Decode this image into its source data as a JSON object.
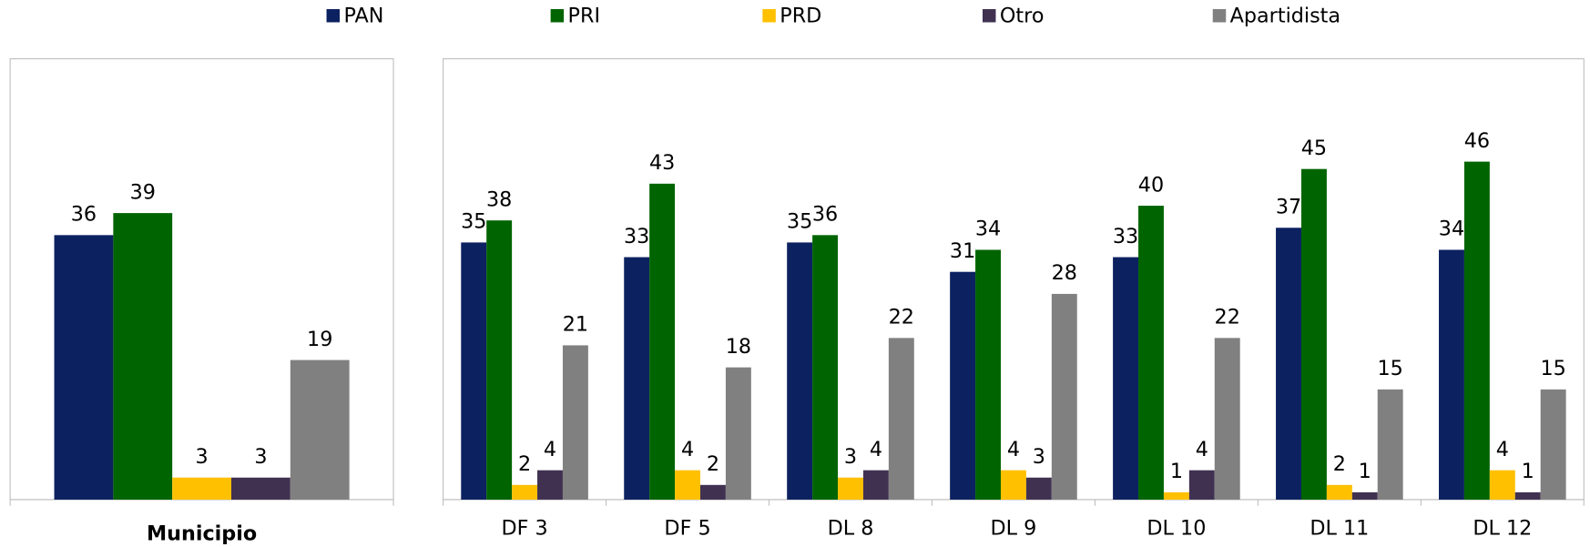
{
  "chart_data": [
    {
      "type": "bar",
      "categories": [
        "Municipio"
      ],
      "series": [
        {
          "name": "PAN",
          "color": "#0c2160",
          "values": [
            36
          ]
        },
        {
          "name": "PRI",
          "color": "#006400",
          "values": [
            39
          ]
        },
        {
          "name": "PRD",
          "color": "#ffc000",
          "values": [
            3
          ]
        },
        {
          "name": "Otro",
          "color": "#403151",
          "values": [
            3
          ]
        },
        {
          "name": "Apartidista",
          "color": "#808080",
          "values": [
            19
          ]
        }
      ],
      "ylim": [
        0,
        60
      ]
    },
    {
      "type": "bar",
      "categories": [
        "DF 3",
        "DF 5",
        "DL 8",
        "DL 9",
        "DL 10",
        "DL 11",
        "DL 12"
      ],
      "series": [
        {
          "name": "PAN",
          "color": "#0c2160",
          "values": [
            35,
            33,
            35,
            31,
            33,
            37,
            34
          ]
        },
        {
          "name": "PRI",
          "color": "#006400",
          "values": [
            38,
            43,
            36,
            34,
            40,
            45,
            46
          ]
        },
        {
          "name": "PRD",
          "color": "#ffc000",
          "values": [
            2,
            4,
            3,
            4,
            1,
            2,
            4
          ]
        },
        {
          "name": "Otro",
          "color": "#403151",
          "values": [
            4,
            2,
            4,
            3,
            4,
            1,
            1
          ]
        },
        {
          "name": "Apartidista",
          "color": "#808080",
          "values": [
            21,
            18,
            22,
            28,
            22,
            15,
            15
          ]
        }
      ],
      "ylim": [
        0,
        60
      ]
    }
  ]
}
